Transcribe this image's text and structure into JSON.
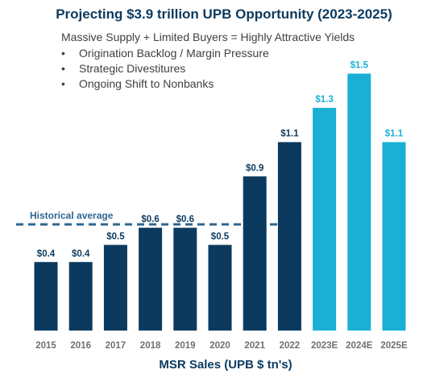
{
  "header": {
    "title": "Projecting $3.9 trillion UPB Opportunity (2023-2025)",
    "subtitle": "Massive Supply + Limited Buyers = Highly Attractive Yields",
    "bullets": [
      "Origination Backlog / Margin Pressure",
      "Strategic Divestitures",
      "Ongoing Shift to Nonbanks"
    ]
  },
  "colors": {
    "actual": "#0b3a5e",
    "estimate": "#1ab0d6",
    "axis_text": "#707070",
    "reference": "#2e6690"
  },
  "chart_data": {
    "type": "bar",
    "xlabel": "MSR Sales (UPB $ tn's)",
    "categories": [
      "2015",
      "2016",
      "2017",
      "2018",
      "2019",
      "2020",
      "2021",
      "2022",
      "2023E",
      "2024E",
      "2025E"
    ],
    "values": [
      0.4,
      0.4,
      0.5,
      0.6,
      0.6,
      0.5,
      0.9,
      1.1,
      1.3,
      1.5,
      1.1
    ],
    "data_labels": [
      "$0.4",
      "$0.4",
      "$0.5",
      "$0.6",
      "$0.6",
      "$0.5",
      "$0.9",
      "$1.1",
      "$1.3",
      "$1.5",
      "$1.1"
    ],
    "estimated": [
      false,
      false,
      false,
      false,
      false,
      false,
      false,
      false,
      true,
      true,
      true
    ],
    "reference_line": {
      "label": "Historical average",
      "value": 0.62,
      "style": "dashed"
    },
    "ylim": [
      0,
      1.6
    ],
    "grid": false,
    "legend": "none"
  }
}
